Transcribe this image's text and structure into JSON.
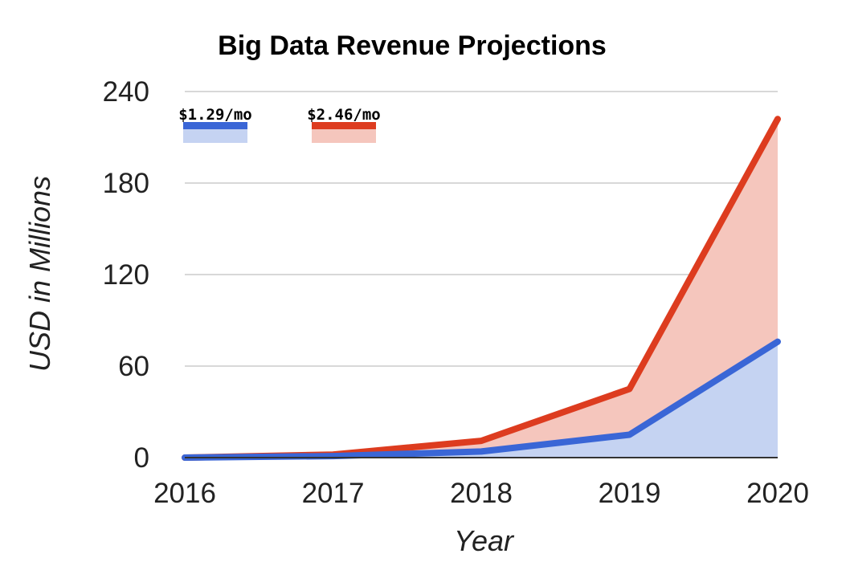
{
  "chart_data": {
    "type": "area",
    "title": "Big Data Revenue Projections",
    "xlabel": "Year",
    "ylabel": "USD in Millions",
    "categories": [
      "2016",
      "2017",
      "2018",
      "2019",
      "2020"
    ],
    "ylim": [
      0,
      240
    ],
    "yticks": [
      "0",
      "60",
      "120",
      "180",
      "240"
    ],
    "grid": true,
    "legend_position": "top-left",
    "series": [
      {
        "name": "$1.29/mo",
        "values": [
          0,
          1,
          4,
          15,
          76
        ],
        "line_color": "#3a66d6",
        "fill_color": "#c5d3f2"
      },
      {
        "name": "$2.46/mo",
        "values": [
          0,
          2,
          11,
          45,
          222
        ],
        "line_color": "#dd3c1f",
        "fill_color": "#f5c6bd"
      }
    ]
  }
}
